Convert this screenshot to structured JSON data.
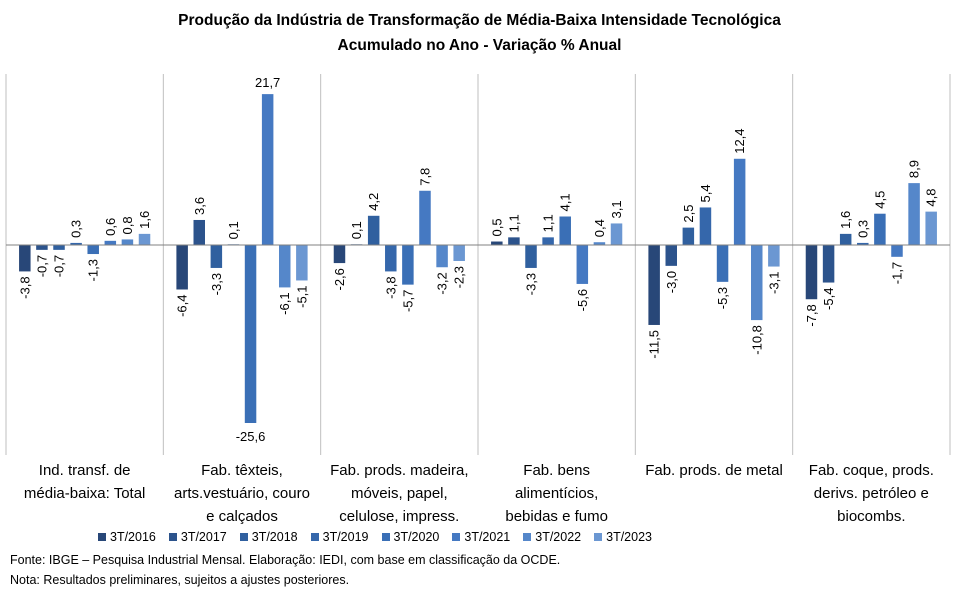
{
  "chart_data": {
    "type": "bar",
    "title": "Produção da Indústria de Transformação de Média-Baixa Intensidade Tecnológica",
    "subtitle": "Acumulado no Ano - Variação % Anual",
    "categories": [
      [
        "Ind. transf. de",
        "média-baixa: Total"
      ],
      [
        "Fab. têxteis,",
        "arts.vestuário, couro",
        "e calçados"
      ],
      [
        "Fab. prods. madeira,",
        "móveis, papel,",
        "celulose, impress."
      ],
      [
        "Fab. bens",
        "alimentícios,",
        "bebidas e fumo"
      ],
      [
        "Fab. prods. de metal"
      ],
      [
        "Fab. coque, prods.",
        "derivs. petróleo e",
        "biocombs."
      ]
    ],
    "series": [
      {
        "name": "3T/2016",
        "values": [
          -3.8,
          -6.4,
          -2.6,
          0.5,
          -11.5,
          -7.8
        ]
      },
      {
        "name": "3T/2017",
        "values": [
          -0.7,
          3.6,
          0.1,
          1.1,
          -3.0,
          -5.4
        ]
      },
      {
        "name": "3T/2018",
        "values": [
          -0.7,
          -3.3,
          4.2,
          -3.3,
          2.5,
          1.6
        ]
      },
      {
        "name": "3T/2019",
        "values": [
          0.3,
          0.1,
          -3.8,
          1.1,
          5.4,
          0.3
        ]
      },
      {
        "name": "3T/2020",
        "values": [
          -1.3,
          -25.6,
          -5.7,
          4.1,
          -5.3,
          4.5
        ]
      },
      {
        "name": "3T/2021",
        "values": [
          0.6,
          21.7,
          7.8,
          -5.6,
          12.4,
          -1.7
        ]
      },
      {
        "name": "3T/2022",
        "values": [
          0.8,
          -6.1,
          -3.2,
          0.4,
          -10.8,
          8.9
        ]
      },
      {
        "name": "3T/2023",
        "values": [
          1.6,
          -5.1,
          -2.3,
          3.1,
          -3.1,
          4.8
        ]
      }
    ],
    "colors": [
      "#284778",
      "#2c538c",
      "#30609f",
      "#3567ab",
      "#3a6fb6",
      "#4579c2",
      "#5587ca",
      "#6b97d2"
    ],
    "ylim": [
      -30,
      25
    ],
    "grid": false,
    "legend": "bottom"
  },
  "footer": {
    "source": "Fonte: IBGE – Pesquisa Industrial Mensal. Elaboração: IEDI, com base em classificação da OCDE.",
    "note": "Nota: Resultados preliminares, sujeitos a ajustes posteriores."
  }
}
